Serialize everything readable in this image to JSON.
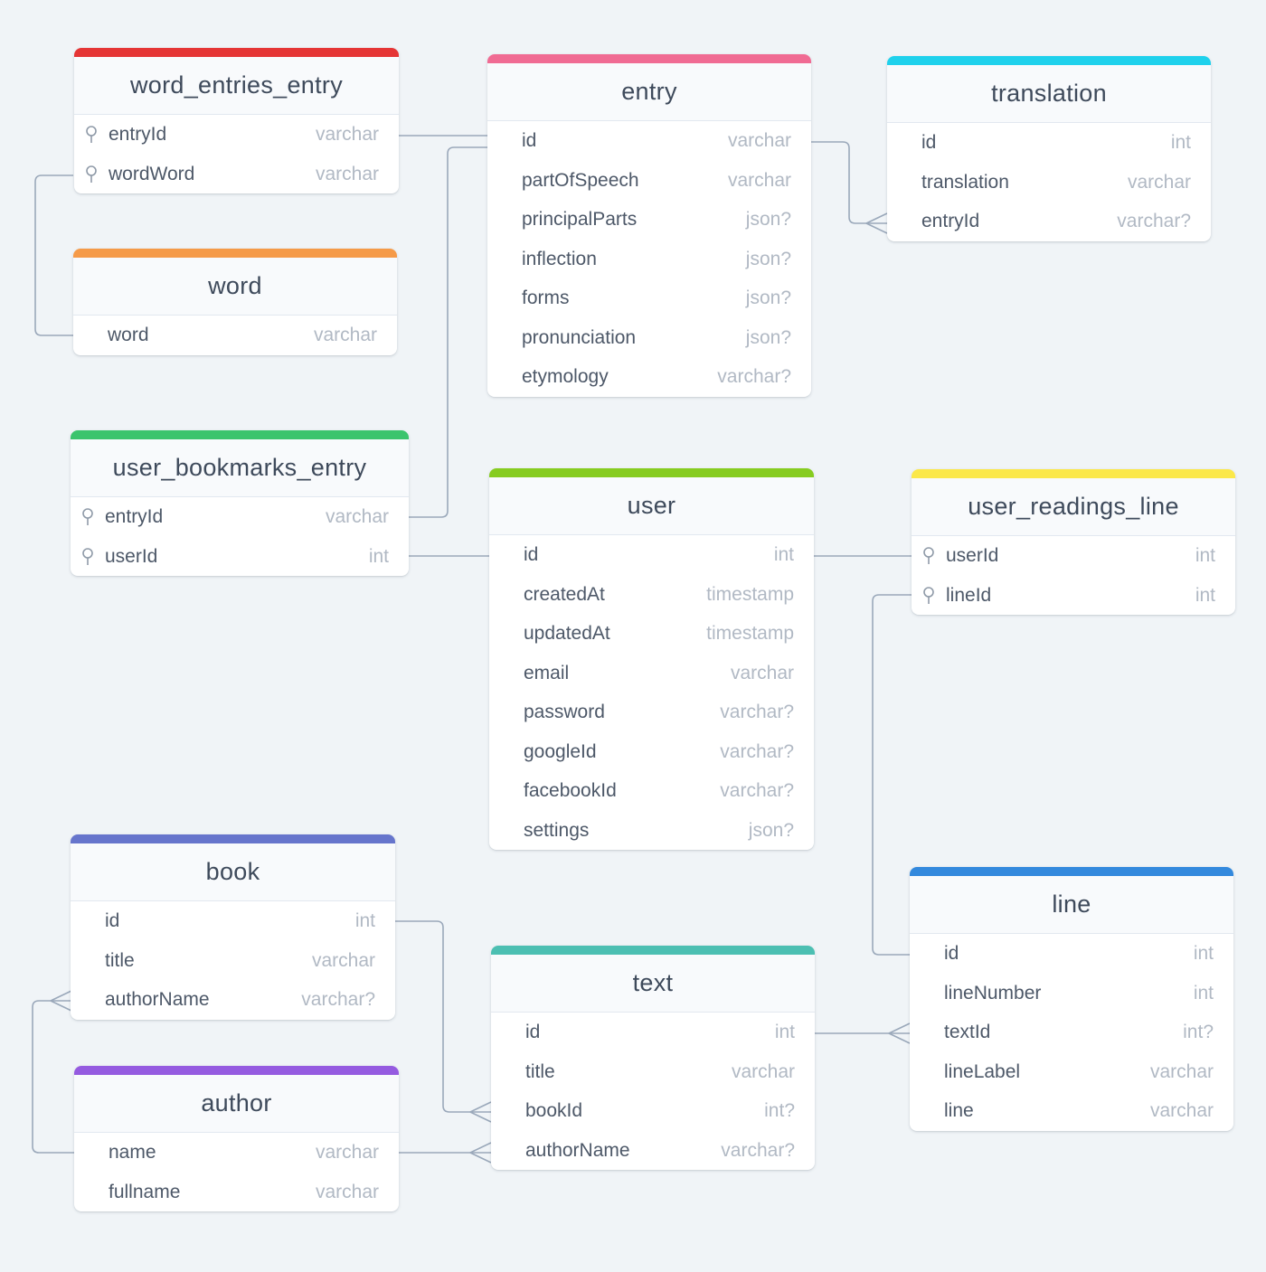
{
  "colors": {
    "background": "#f0f4f7",
    "connector": "#9aa8ba",
    "word_entries_entry": "#e53535",
    "entry": "#f06b93",
    "translation": "#1fd1ec",
    "word": "#f59a48",
    "user_bookmarks_entry": "#3bc46d",
    "user": "#86cc20",
    "user_readings_line": "#fbe84a",
    "book": "#6675cc",
    "author": "#955be0",
    "text": "#4cbfb2",
    "line": "#3389dd"
  },
  "icons": {
    "primary_key": "key-icon"
  },
  "tables": [
    {
      "id": "word_entries_entry",
      "name": "word_entries_entry",
      "columns": [
        {
          "name": "entryId",
          "type": "varchar",
          "pk": true
        },
        {
          "name": "wordWord",
          "type": "varchar",
          "pk": true
        }
      ]
    },
    {
      "id": "entry",
      "name": "entry",
      "columns": [
        {
          "name": "id",
          "type": "varchar",
          "pk": false
        },
        {
          "name": "partOfSpeech",
          "type": "varchar",
          "pk": false
        },
        {
          "name": "principalParts",
          "type": "json?",
          "pk": false
        },
        {
          "name": "inflection",
          "type": "json?",
          "pk": false
        },
        {
          "name": "forms",
          "type": "json?",
          "pk": false
        },
        {
          "name": "pronunciation",
          "type": "json?",
          "pk": false
        },
        {
          "name": "etymology",
          "type": "varchar?",
          "pk": false
        }
      ]
    },
    {
      "id": "translation",
      "name": "translation",
      "columns": [
        {
          "name": "id",
          "type": "int",
          "pk": false
        },
        {
          "name": "translation",
          "type": "varchar",
          "pk": false
        },
        {
          "name": "entryId",
          "type": "varchar?",
          "pk": false
        }
      ]
    },
    {
      "id": "word",
      "name": "word",
      "columns": [
        {
          "name": "word",
          "type": "varchar",
          "pk": false
        }
      ]
    },
    {
      "id": "user_bookmarks_entry",
      "name": "user_bookmarks_entry",
      "columns": [
        {
          "name": "entryId",
          "type": "varchar",
          "pk": true
        },
        {
          "name": "userId",
          "type": "int",
          "pk": true
        }
      ]
    },
    {
      "id": "user",
      "name": "user",
      "columns": [
        {
          "name": "id",
          "type": "int",
          "pk": false
        },
        {
          "name": "createdAt",
          "type": "timestamp",
          "pk": false
        },
        {
          "name": "updatedAt",
          "type": "timestamp",
          "pk": false
        },
        {
          "name": "email",
          "type": "varchar",
          "pk": false
        },
        {
          "name": "password",
          "type": "varchar?",
          "pk": false
        },
        {
          "name": "googleId",
          "type": "varchar?",
          "pk": false
        },
        {
          "name": "facebookId",
          "type": "varchar?",
          "pk": false
        },
        {
          "name": "settings",
          "type": "json?",
          "pk": false
        }
      ]
    },
    {
      "id": "user_readings_line",
      "name": "user_readings_line",
      "columns": [
        {
          "name": "userId",
          "type": "int",
          "pk": true
        },
        {
          "name": "lineId",
          "type": "int",
          "pk": true
        }
      ]
    },
    {
      "id": "book",
      "name": "book",
      "columns": [
        {
          "name": "id",
          "type": "int",
          "pk": false
        },
        {
          "name": "title",
          "type": "varchar",
          "pk": false
        },
        {
          "name": "authorName",
          "type": "varchar?",
          "pk": false
        }
      ]
    },
    {
      "id": "author",
      "name": "author",
      "columns": [
        {
          "name": "name",
          "type": "varchar",
          "pk": false
        },
        {
          "name": "fullname",
          "type": "varchar",
          "pk": false
        }
      ]
    },
    {
      "id": "text",
      "name": "text",
      "columns": [
        {
          "name": "id",
          "type": "int",
          "pk": false
        },
        {
          "name": "title",
          "type": "varchar",
          "pk": false
        },
        {
          "name": "bookId",
          "type": "int?",
          "pk": false
        },
        {
          "name": "authorName",
          "type": "varchar?",
          "pk": false
        }
      ]
    },
    {
      "id": "line",
      "name": "line",
      "columns": [
        {
          "name": "id",
          "type": "int",
          "pk": false
        },
        {
          "name": "lineNumber",
          "type": "int",
          "pk": false
        },
        {
          "name": "textId",
          "type": "int?",
          "pk": false
        },
        {
          "name": "lineLabel",
          "type": "varchar",
          "pk": false
        },
        {
          "name": "line",
          "type": "varchar",
          "pk": false
        }
      ]
    }
  ],
  "relations": [
    {
      "from": "word_entries_entry.entryId",
      "to": "entry.id"
    },
    {
      "from": "word_entries_entry.wordWord",
      "to": "word.word"
    },
    {
      "from": "user_bookmarks_entry.entryId",
      "to": "entry.id"
    },
    {
      "from": "user_bookmarks_entry.userId",
      "to": "user.id"
    },
    {
      "from": "entry.id",
      "to": "translation.entryId",
      "cardinality": "many"
    },
    {
      "from": "user.id",
      "to": "user_readings_line.userId"
    },
    {
      "from": "user_readings_line.lineId",
      "to": "line.id"
    },
    {
      "from": "book.id",
      "to": "text.bookId",
      "cardinality": "many"
    },
    {
      "from": "author.name",
      "to": "text.authorName",
      "cardinality": "many"
    },
    {
      "from": "author.name",
      "to": "book.authorName",
      "cardinality": "many"
    },
    {
      "from": "text.id",
      "to": "line.textId",
      "cardinality": "many"
    }
  ]
}
